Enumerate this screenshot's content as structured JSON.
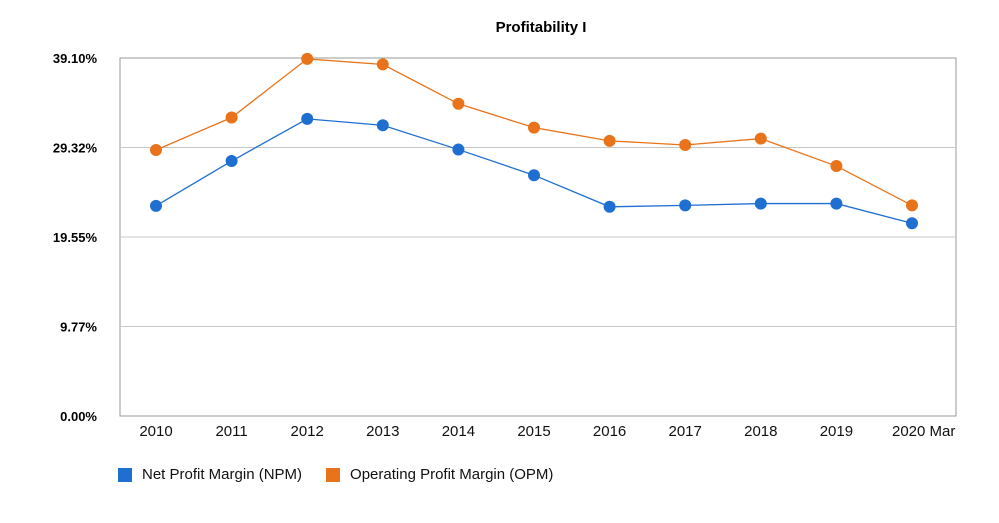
{
  "chart_data": {
    "type": "line",
    "title": "Profitability I",
    "xlabel": "",
    "ylabel": "",
    "categories": [
      "2010",
      "2011",
      "2012",
      "2013",
      "2014",
      "2015",
      "2016",
      "2017",
      "2018",
      "2019",
      "2020 Mar"
    ],
    "y_ticks": [
      "0.00%",
      "9.77%",
      "19.55%",
      "29.32%",
      "39.10%"
    ],
    "ylim": [
      0,
      39.1
    ],
    "grid": true,
    "legend_position": "bottom-left",
    "series": [
      {
        "name": "Net Profit Margin (NPM)",
        "color": "#1f6fd1",
        "values": [
          22.95,
          27.85,
          32.45,
          31.75,
          29.1,
          26.3,
          22.85,
          23.0,
          23.2,
          23.2,
          21.05
        ]
      },
      {
        "name": "Operating Profit Margin (OPM)",
        "color": "#e8731a",
        "values": [
          29.05,
          32.6,
          39.0,
          38.4,
          34.1,
          31.5,
          30.05,
          29.6,
          30.3,
          27.3,
          23.0
        ]
      }
    ]
  }
}
